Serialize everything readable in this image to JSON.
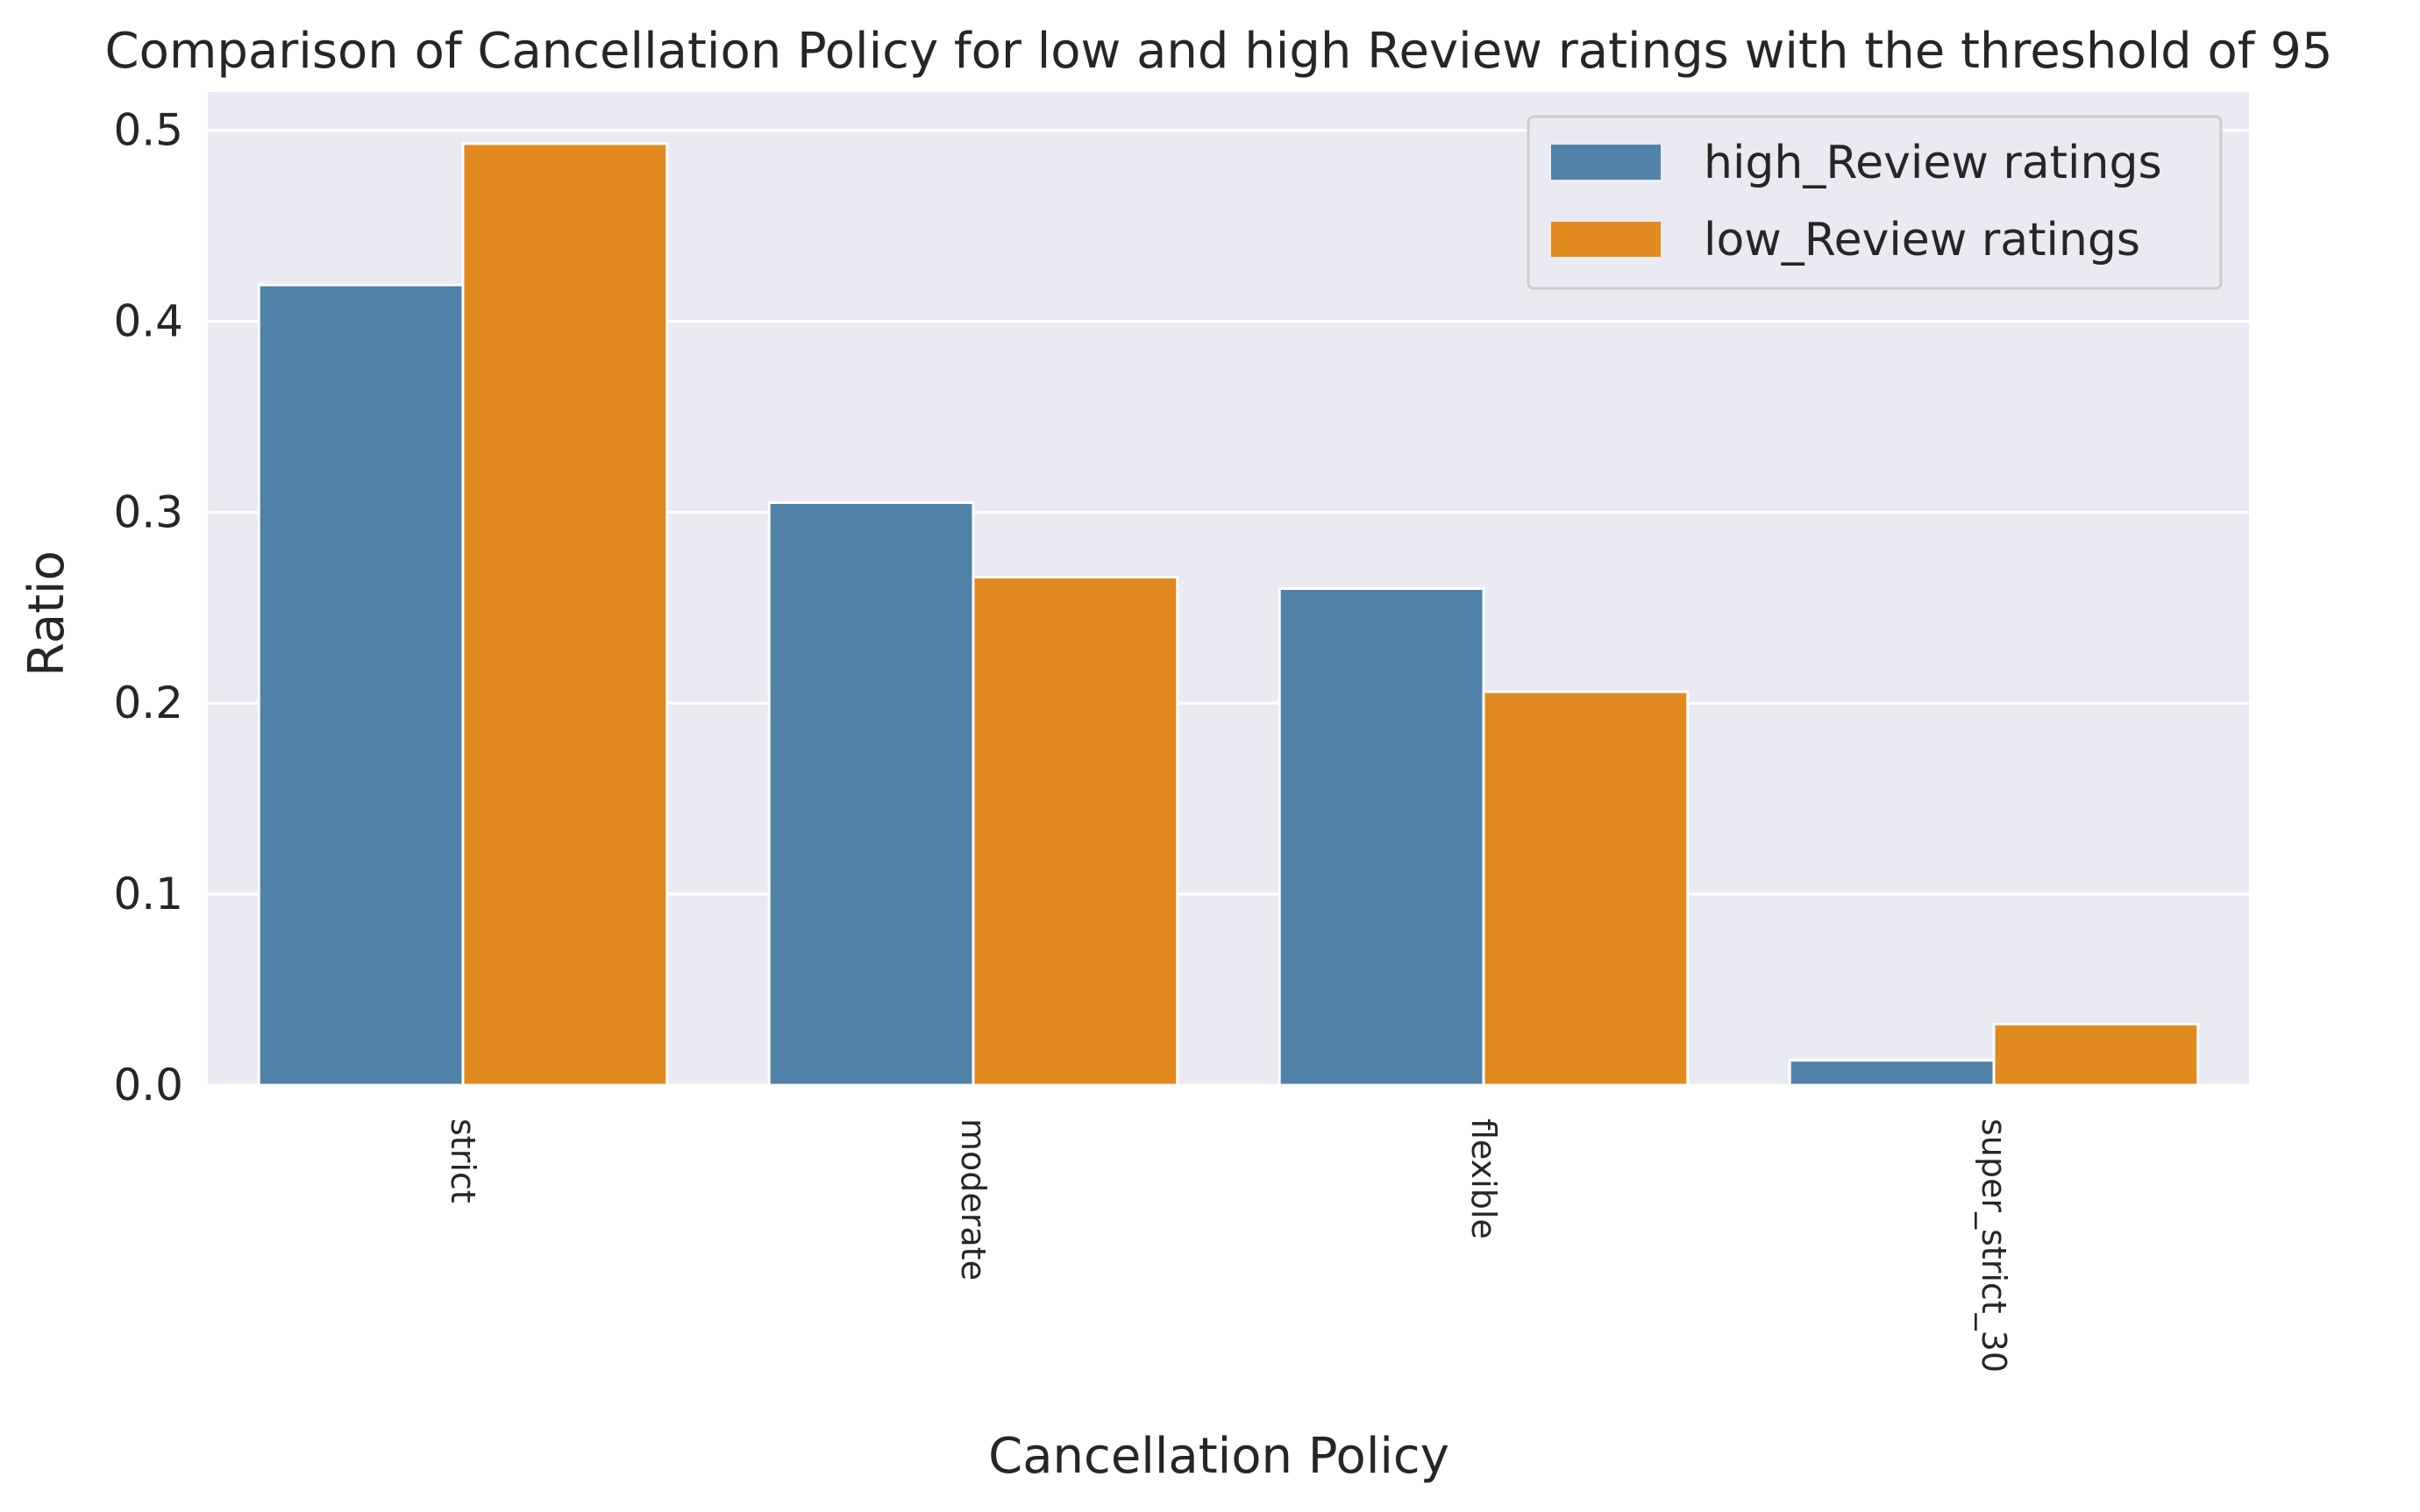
{
  "chart_data": {
    "type": "bar",
    "title": "Comparison of Cancellation Policy for low and high Review ratings with the threshold of 95",
    "xlabel": "Cancellation Policy",
    "ylabel": "Ratio",
    "categories": [
      "strict",
      "moderate",
      "flexible",
      "super_strict_30"
    ],
    "series": [
      {
        "name": "high_Review ratings",
        "color": "#4f81a9",
        "values": [
          0.419,
          0.305,
          0.26,
          0.013
        ]
      },
      {
        "name": "low_Review ratings",
        "color": "#e08a1f",
        "values": [
          0.493,
          0.266,
          0.206,
          0.032
        ]
      }
    ],
    "ylim": [
      0,
      0.52
    ],
    "yticks": [
      0.0,
      0.1,
      0.2,
      0.3,
      0.4,
      0.5
    ],
    "ytick_labels": [
      "0.0",
      "0.1",
      "0.2",
      "0.3",
      "0.4",
      "0.5"
    ],
    "xtick_rotation": "vertical",
    "grid": true,
    "legend_position": "top-right",
    "background": "#eaeaf2"
  }
}
